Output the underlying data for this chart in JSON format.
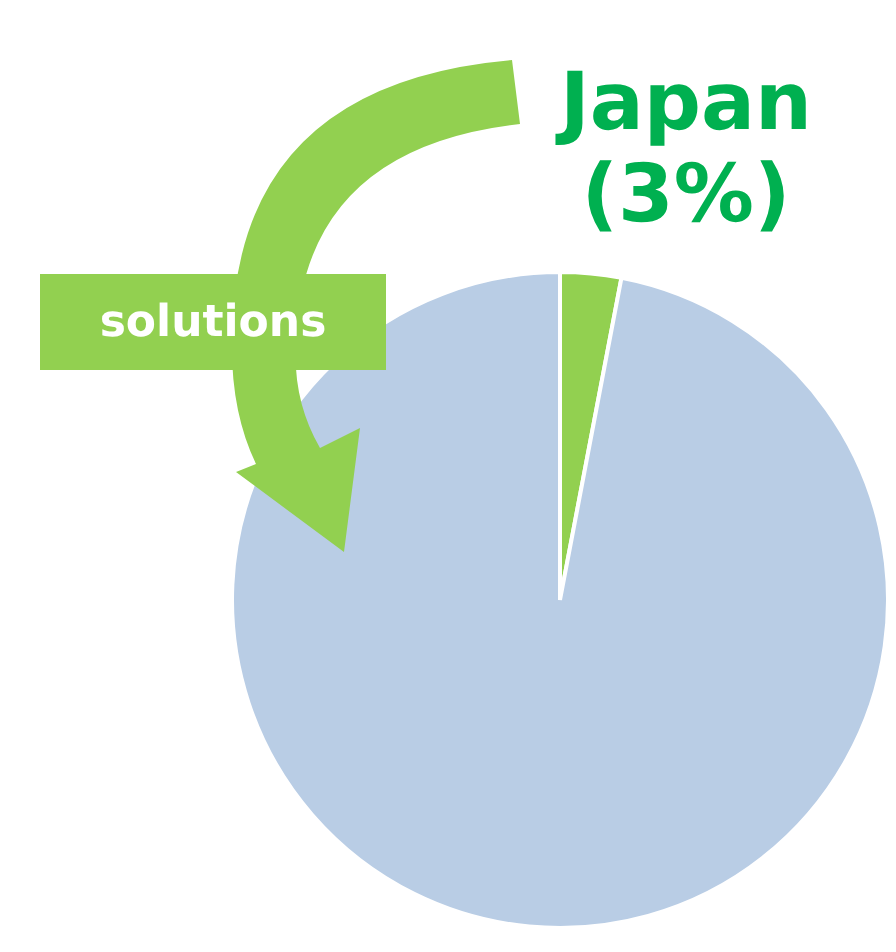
{
  "chart_data": {
    "type": "pie",
    "categories": [
      "Japan",
      null
    ],
    "values": [
      3,
      97
    ],
    "colors": [
      "#92d050",
      "#b9cde5"
    ],
    "value_labels": [
      "(3%)",
      null
    ],
    "legend": false,
    "annotations": [
      "solutions"
    ]
  }
}
